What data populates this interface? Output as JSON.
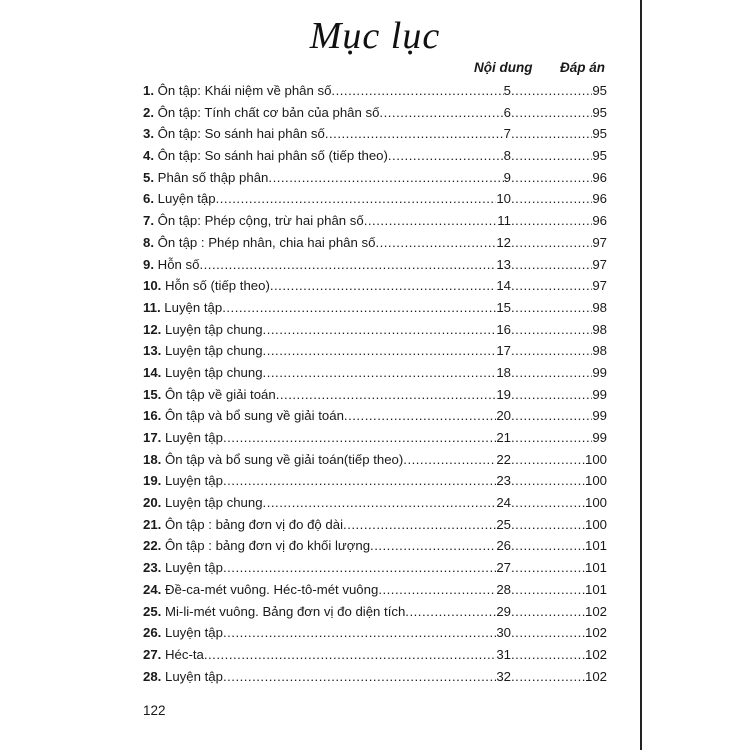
{
  "title": "Mục lục",
  "headers": {
    "content": "Nội dung",
    "answers": "Đáp án"
  },
  "entries": [
    {
      "n": "1.",
      "label": "Ôn tập: Khái niệm về phân số",
      "page": "5",
      "answer": "95"
    },
    {
      "n": "2.",
      "label": "Ôn tập: Tính chất cơ bản của phân số ",
      "page": "6",
      "answer": "95"
    },
    {
      "n": "3.",
      "label": "Ôn tập: So sánh hai phân số",
      "page": "7",
      "answer": "95"
    },
    {
      "n": "4.",
      "label": "Ôn tập: So sánh hai phân số (tiếp theo)",
      "page": "8",
      "answer": "95"
    },
    {
      "n": "5.",
      "label": "Phân số thập phân",
      "page": "9",
      "answer": "96"
    },
    {
      "n": "6.",
      "label": "Luyện tập",
      "page": "10",
      "answer": "96"
    },
    {
      "n": "7.",
      "label": "Ôn tập: Phép cộng, trừ hai phân số",
      "page": "11",
      "answer": "96"
    },
    {
      "n": "8.",
      "label": "Ôn tập : Phép nhân, chia hai phân số",
      "page": "12",
      "answer": "97"
    },
    {
      "n": "9.",
      "label": "Hỗn số ",
      "page": "13",
      "answer": "97"
    },
    {
      "n": "10.",
      "label": "Hỗn số (tiếp theo) ",
      "page": "14",
      "answer": "97"
    },
    {
      "n": "11.",
      "label": "Luyện tập ",
      "page": "15",
      "answer": "98"
    },
    {
      "n": "12.",
      "label": "Luyện tập chung ",
      "page": "16",
      "answer": "98"
    },
    {
      "n": "13.",
      "label": "Luyện tập chung ",
      "page": "17",
      "answer": "98"
    },
    {
      "n": "14.",
      "label": "Luyện tập chung ",
      "page": "18",
      "answer": "99"
    },
    {
      "n": "15.",
      "label": "Ôn tập về giải toán",
      "page": "19",
      "answer": "99"
    },
    {
      "n": "16.",
      "label": "Ôn tập và bổ sung về giải toán",
      "page": "20",
      "answer": "99"
    },
    {
      "n": "17.",
      "label": "Luyện tập ",
      "page": "21",
      "answer": "99"
    },
    {
      "n": "18.",
      "label": "Ôn tập và bổ sung về giải toán(tiếp theo)",
      "page": "22",
      "answer": "100"
    },
    {
      "n": "19.",
      "label": "Luyện tập ",
      "page": "23",
      "answer": "100"
    },
    {
      "n": "20.",
      "label": "Luyện tập chung ",
      "page": "24",
      "answer": "100"
    },
    {
      "n": "21.",
      "label": "Ôn tập : bảng đơn vị đo độ dài ",
      "page": "25",
      "answer": "100"
    },
    {
      "n": "22.",
      "label": "Ôn tập : bảng đơn vị đo khối lượng",
      "page": "26",
      "answer": "101"
    },
    {
      "n": "23.",
      "label": "Luyện tập ",
      "page": "27",
      "answer": "101"
    },
    {
      "n": "24.",
      "label": "Đề-ca-mét vuông. Héc-tô-mét vuông",
      "page": "28",
      "answer": "101"
    },
    {
      "n": "25.",
      "label": "Mi-li-mét vuông. Bảng đơn vị đo diện tích ",
      "page": "29",
      "answer": "102"
    },
    {
      "n": "26.",
      "label": "Luyện tập ",
      "page": "30",
      "answer": "102"
    },
    {
      "n": "27.",
      "label": "Héc-ta ",
      "page": "31",
      "answer": "102"
    },
    {
      "n": "28.",
      "label": "Luyện tập ",
      "page": "32",
      "answer": "102"
    }
  ],
  "page_number": "122"
}
